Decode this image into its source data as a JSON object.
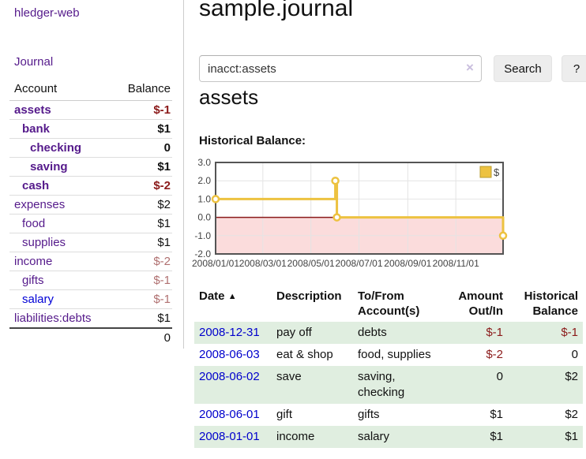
{
  "sidebar": {
    "brand": "hledger-web",
    "nav_journal": "Journal",
    "accounts": {
      "col_account": "Account",
      "col_balance": "Balance",
      "rows": [
        {
          "label": "assets",
          "balance": "$-1"
        },
        {
          "label": "bank",
          "balance": "$1"
        },
        {
          "label": "checking",
          "balance": "0"
        },
        {
          "label": "saving",
          "balance": "$1"
        },
        {
          "label": "cash",
          "balance": "$-2"
        },
        {
          "label": "expenses",
          "balance": "$2"
        },
        {
          "label": "food",
          "balance": "$1"
        },
        {
          "label": "supplies",
          "balance": "$1"
        },
        {
          "label": "income",
          "balance": "$-2"
        },
        {
          "label": "gifts",
          "balance": "$-1"
        },
        {
          "label": "salary",
          "balance": "$-1"
        },
        {
          "label": "liabilities:debts",
          "balance": "$1"
        }
      ],
      "total": "0"
    }
  },
  "main": {
    "title": "sample.journal",
    "search": {
      "value": "inacct:assets",
      "clear": "×",
      "button": "Search",
      "help": "?"
    },
    "heading": "assets",
    "chart_label": "Historical Balance:",
    "register": {
      "headers": {
        "date": "Date",
        "sort_icon": "▲",
        "description": "Description",
        "accounts_l1": "To/From",
        "accounts_l2": "Account(s)",
        "amount_l1": "Amount",
        "amount_l2": "Out/In",
        "balance_l1": "Historical",
        "balance_l2": "Balance"
      },
      "rows": [
        {
          "date": "2008-12-31",
          "description": "pay off",
          "accounts": "debts",
          "amount": "$-1",
          "balance": "$-1"
        },
        {
          "date": "2008-06-03",
          "description": "eat & shop",
          "accounts": "food, supplies",
          "amount": "$-2",
          "balance": "0"
        },
        {
          "date": "2008-06-02",
          "description": "save",
          "accounts": "saving, checking",
          "amount": "0",
          "balance": "$2"
        },
        {
          "date": "2008-06-01",
          "description": "gift",
          "accounts": "gifts",
          "amount": "$1",
          "balance": "$2"
        },
        {
          "date": "2008-01-01",
          "description": "income",
          "accounts": "salary",
          "amount": "$1",
          "balance": "$1"
        }
      ]
    }
  },
  "chart_data": {
    "type": "line",
    "title": "Historical Balance:",
    "step": true,
    "x": [
      "2008-01-01",
      "2008-06-01",
      "2008-06-03",
      "2008-12-31"
    ],
    "series": [
      {
        "name": "$",
        "color": "#edc240",
        "values": [
          1.0,
          2.0,
          0.0,
          -1.0
        ]
      }
    ],
    "ylim": [
      -2.0,
      3.0
    ],
    "yticks": [
      3.0,
      2.0,
      1.0,
      0.0,
      -1.0,
      -2.0
    ],
    "xticks": [
      "2008/01/01",
      "2008/03/01",
      "2008/05/01",
      "2008/07/01",
      "2008/09/01",
      "2008/11/01"
    ],
    "legend": {
      "position": "top-right",
      "label": "$"
    },
    "grid": true,
    "negative_region_color": "#fbdcdc",
    "zero_line_color": "#8b1a1a",
    "plot_border_color": "#545454"
  }
}
